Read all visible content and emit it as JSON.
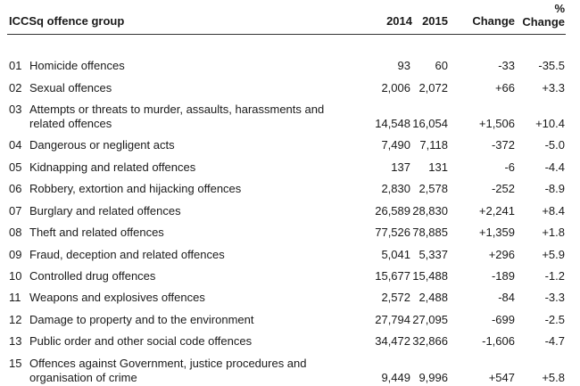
{
  "table": {
    "headers": {
      "group": "ICCSq offence group",
      "y2014": "2014",
      "y2015": "2015",
      "change": "Change",
      "pct_symbol": "%",
      "pct_change": "Change"
    },
    "rows": [
      {
        "code": "01",
        "label": "Homicide offences",
        "v2014": "93",
        "v2015": "60",
        "change": "-33",
        "pct": "-35.5"
      },
      {
        "code": "02",
        "label": "Sexual offences",
        "v2014": "2,006",
        "v2015": "2,072",
        "change": "+66",
        "pct": "+3.3"
      },
      {
        "code": "03",
        "label": "Attempts or threats to murder, assaults, harassments and related offences",
        "v2014": "14,548",
        "v2015": "16,054",
        "change": "+1,506",
        "pct": "+10.4"
      },
      {
        "code": "04",
        "label": "Dangerous or negligent acts",
        "v2014": "7,490",
        "v2015": "7,118",
        "change": "-372",
        "pct": "-5.0"
      },
      {
        "code": "05",
        "label": "Kidnapping and related offences",
        "v2014": "137",
        "v2015": "131",
        "change": "-6",
        "pct": "-4.4"
      },
      {
        "code": "06",
        "label": "Robbery, extortion and hijacking offences",
        "v2014": "2,830",
        "v2015": "2,578",
        "change": "-252",
        "pct": "-8.9"
      },
      {
        "code": "07",
        "label": "Burglary and related offences",
        "v2014": "26,589",
        "v2015": "28,830",
        "change": "+2,241",
        "pct": "+8.4"
      },
      {
        "code": "08",
        "label": "Theft and related offences",
        "v2014": "77,526",
        "v2015": "78,885",
        "change": "+1,359",
        "pct": "+1.8"
      },
      {
        "code": "09",
        "label": "Fraud, deception and related offences",
        "v2014": "5,041",
        "v2015": "5,337",
        "change": "+296",
        "pct": "+5.9"
      },
      {
        "code": "10",
        "label": "Controlled drug offences",
        "v2014": "15,677",
        "v2015": "15,488",
        "change": "-189",
        "pct": "-1.2"
      },
      {
        "code": "11",
        "label": "Weapons and explosives offences",
        "v2014": "2,572",
        "v2015": "2,488",
        "change": "-84",
        "pct": "-3.3"
      },
      {
        "code": "12",
        "label": "Damage to property and to the environment",
        "v2014": "27,794",
        "v2015": "27,095",
        "change": "-699",
        "pct": "-2.5"
      },
      {
        "code": "13",
        "label": "Public order and other social code offences",
        "v2014": "34,472",
        "v2015": "32,866",
        "change": "-1,606",
        "pct": "-4.7"
      },
      {
        "code": "15",
        "label": "Offences against Government, justice procedures and organisation of crime",
        "v2014": "9,449",
        "v2015": "9,996",
        "change": "+547",
        "pct": "+5.8"
      }
    ]
  }
}
